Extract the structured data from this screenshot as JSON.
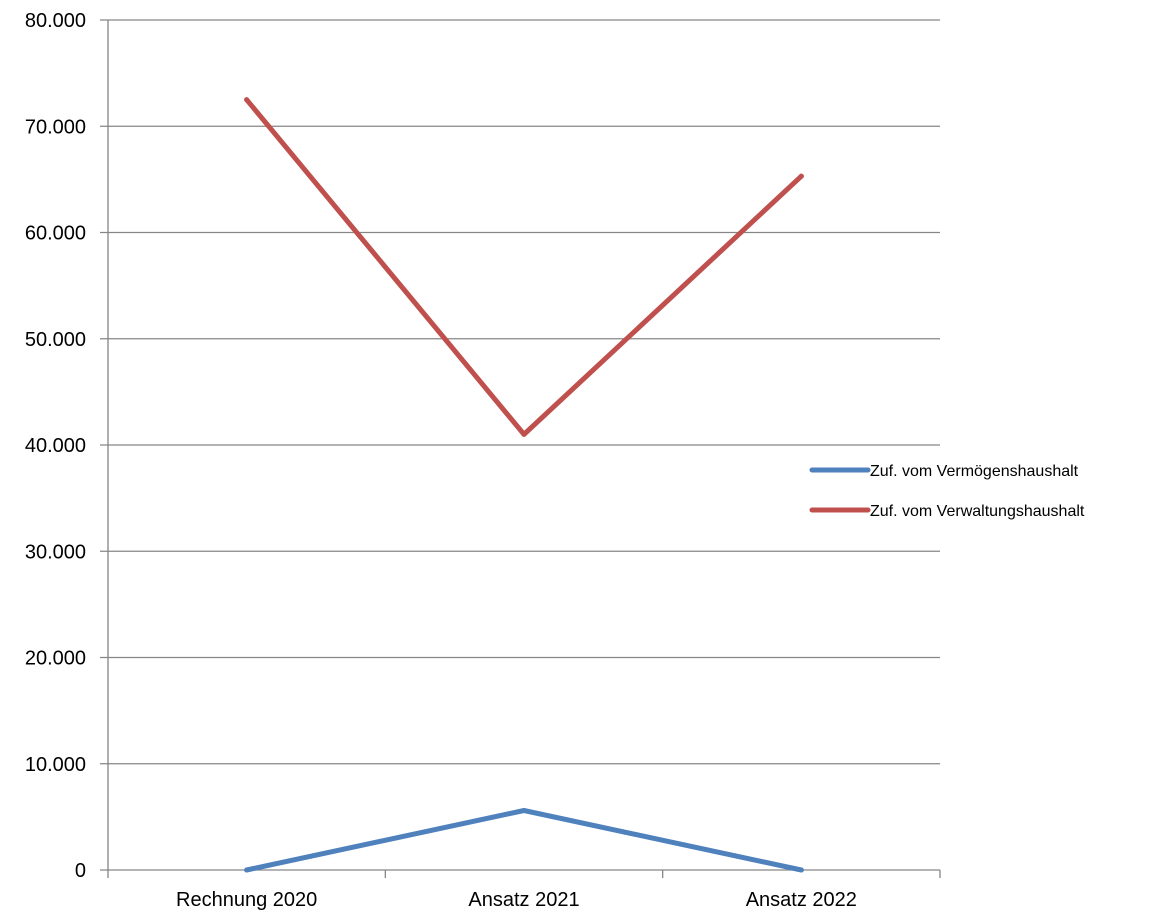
{
  "chart_data": {
    "type": "line",
    "categories": [
      "Rechnung 2020",
      "Ansatz 2021",
      "Ansatz 2022"
    ],
    "series": [
      {
        "name": "Zuf. vom Vermögenshaushalt",
        "values": [
          0,
          5600,
          0
        ],
        "color": "#4f81bd"
      },
      {
        "name": "Zuf. vom Verwaltungshaushalt",
        "values": [
          72500,
          41000,
          65300
        ],
        "color": "#c0504d"
      }
    ],
    "y_ticks": [
      "0",
      "10.000",
      "20.000",
      "30.000",
      "40.000",
      "50.000",
      "60.000",
      "70.000",
      "80.000"
    ],
    "ylim": [
      0,
      80000
    ],
    "grid": true,
    "legend_position": "right",
    "title": "",
    "xlabel": "",
    "ylabel": ""
  }
}
